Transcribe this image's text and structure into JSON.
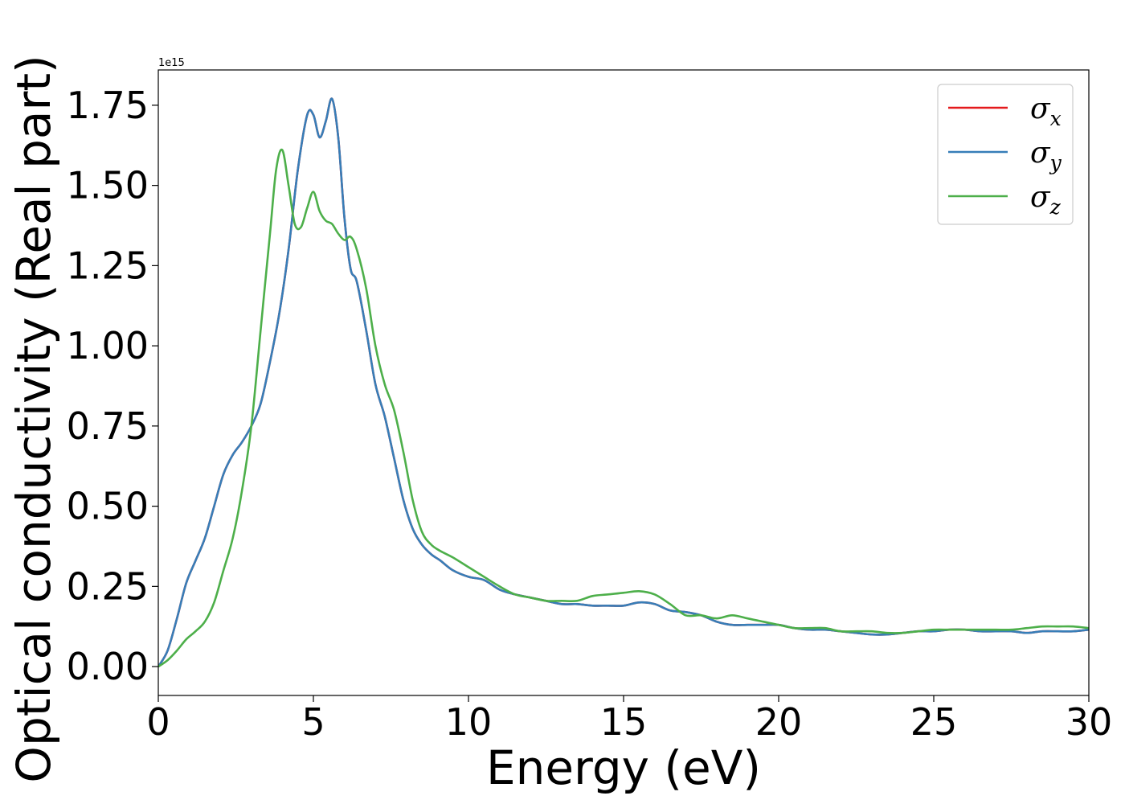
{
  "chart_data": {
    "type": "line",
    "xlabel": "Energy (eV)",
    "ylabel": "Optical conductivity (Real part)",
    "y_offset_label": "1e15",
    "xlim": [
      0,
      30
    ],
    "ylim": [
      -0.09,
      1.86
    ],
    "xticks": [
      0,
      5,
      10,
      15,
      20,
      25,
      30
    ],
    "xtick_labels": [
      "0",
      "5",
      "10",
      "15",
      "20",
      "25",
      "30"
    ],
    "yticks": [
      0,
      0.25,
      0.5,
      0.75,
      1.0,
      1.25,
      1.5,
      1.75
    ],
    "ytick_labels": [
      "0.00",
      "0.25",
      "0.50",
      "0.75",
      "1.00",
      "1.25",
      "1.50",
      "1.75"
    ],
    "grid": false,
    "legend_position": "top-right",
    "series": [
      {
        "name": "σx",
        "legend_base": "σ",
        "legend_sub": "x",
        "color": "#e41a1c",
        "x": [
          0,
          0.3,
          0.6,
          0.9,
          1.2,
          1.5,
          1.8,
          2.1,
          2.4,
          2.7,
          3.0,
          3.3,
          3.6,
          3.9,
          4.2,
          4.5,
          4.8,
          5.0,
          5.2,
          5.4,
          5.6,
          5.8,
          6.0,
          6.2,
          6.4,
          6.7,
          7.0,
          7.3,
          7.6,
          7.9,
          8.2,
          8.5,
          8.8,
          9.1,
          9.5,
          10.0,
          10.5,
          11.0,
          11.5,
          12.0,
          12.5,
          13.0,
          13.5,
          14.0,
          14.5,
          15.0,
          15.5,
          16.0,
          16.5,
          17.0,
          17.5,
          18.0,
          18.5,
          19.0,
          19.5,
          20.0,
          20.5,
          21.0,
          21.5,
          22.0,
          22.5,
          23.0,
          23.5,
          24.0,
          24.5,
          25.0,
          25.5,
          26.0,
          26.5,
          27.0,
          27.5,
          28.0,
          28.5,
          29.0,
          29.5,
          30.0
        ],
        "values": [
          0.0,
          0.05,
          0.15,
          0.26,
          0.33,
          0.4,
          0.5,
          0.6,
          0.66,
          0.7,
          0.75,
          0.82,
          0.95,
          1.1,
          1.3,
          1.55,
          1.72,
          1.72,
          1.65,
          1.7,
          1.77,
          1.65,
          1.4,
          1.24,
          1.2,
          1.05,
          0.88,
          0.78,
          0.65,
          0.52,
          0.43,
          0.38,
          0.35,
          0.33,
          0.3,
          0.28,
          0.27,
          0.24,
          0.225,
          0.215,
          0.205,
          0.195,
          0.195,
          0.19,
          0.19,
          0.19,
          0.2,
          0.195,
          0.175,
          0.17,
          0.16,
          0.14,
          0.13,
          0.13,
          0.13,
          0.13,
          0.12,
          0.115,
          0.115,
          0.11,
          0.105,
          0.1,
          0.1,
          0.105,
          0.11,
          0.11,
          0.115,
          0.115,
          0.11,
          0.11,
          0.11,
          0.105,
          0.11,
          0.11,
          0.11,
          0.115
        ]
      },
      {
        "name": "σy",
        "legend_base": "σ",
        "legend_sub": "y",
        "color": "#377eb8",
        "x": [
          0,
          0.3,
          0.6,
          0.9,
          1.2,
          1.5,
          1.8,
          2.1,
          2.4,
          2.7,
          3.0,
          3.3,
          3.6,
          3.9,
          4.2,
          4.5,
          4.8,
          5.0,
          5.2,
          5.4,
          5.6,
          5.8,
          6.0,
          6.2,
          6.4,
          6.7,
          7.0,
          7.3,
          7.6,
          7.9,
          8.2,
          8.5,
          8.8,
          9.1,
          9.5,
          10.0,
          10.5,
          11.0,
          11.5,
          12.0,
          12.5,
          13.0,
          13.5,
          14.0,
          14.5,
          15.0,
          15.5,
          16.0,
          16.5,
          17.0,
          17.5,
          18.0,
          18.5,
          19.0,
          19.5,
          20.0,
          20.5,
          21.0,
          21.5,
          22.0,
          22.5,
          23.0,
          23.5,
          24.0,
          24.5,
          25.0,
          25.5,
          26.0,
          26.5,
          27.0,
          27.5,
          28.0,
          28.5,
          29.0,
          29.5,
          30.0
        ],
        "values": [
          0.0,
          0.05,
          0.15,
          0.26,
          0.33,
          0.4,
          0.5,
          0.6,
          0.66,
          0.7,
          0.75,
          0.82,
          0.95,
          1.1,
          1.3,
          1.55,
          1.72,
          1.72,
          1.65,
          1.7,
          1.77,
          1.65,
          1.4,
          1.24,
          1.2,
          1.05,
          0.88,
          0.78,
          0.65,
          0.52,
          0.43,
          0.38,
          0.35,
          0.33,
          0.3,
          0.28,
          0.27,
          0.24,
          0.225,
          0.215,
          0.205,
          0.195,
          0.195,
          0.19,
          0.19,
          0.19,
          0.2,
          0.195,
          0.175,
          0.17,
          0.16,
          0.14,
          0.13,
          0.13,
          0.13,
          0.13,
          0.12,
          0.115,
          0.115,
          0.11,
          0.105,
          0.1,
          0.1,
          0.105,
          0.11,
          0.11,
          0.115,
          0.115,
          0.11,
          0.11,
          0.11,
          0.105,
          0.11,
          0.11,
          0.11,
          0.115
        ]
      },
      {
        "name": "σz",
        "legend_base": "σ",
        "legend_sub": "z",
        "color": "#4daf4a",
        "x": [
          0,
          0.3,
          0.6,
          0.9,
          1.2,
          1.5,
          1.8,
          2.1,
          2.4,
          2.7,
          3.0,
          3.3,
          3.6,
          3.8,
          4.0,
          4.2,
          4.4,
          4.6,
          4.8,
          5.0,
          5.2,
          5.4,
          5.6,
          5.8,
          6.0,
          6.2,
          6.4,
          6.7,
          7.0,
          7.3,
          7.6,
          7.9,
          8.2,
          8.5,
          8.8,
          9.1,
          9.5,
          10.0,
          10.5,
          11.0,
          11.5,
          12.0,
          12.5,
          13.0,
          13.5,
          14.0,
          14.5,
          15.0,
          15.5,
          16.0,
          16.5,
          17.0,
          17.5,
          18.0,
          18.5,
          19.0,
          19.5,
          20.0,
          20.5,
          21.0,
          21.5,
          22.0,
          22.5,
          23.0,
          23.5,
          24.0,
          24.5,
          25.0,
          25.5,
          26.0,
          26.5,
          27.0,
          27.5,
          28.0,
          28.5,
          29.0,
          29.5,
          30.0
        ],
        "values": [
          0.0,
          0.02,
          0.05,
          0.085,
          0.11,
          0.14,
          0.2,
          0.3,
          0.4,
          0.55,
          0.75,
          1.05,
          1.35,
          1.55,
          1.61,
          1.5,
          1.38,
          1.37,
          1.43,
          1.48,
          1.42,
          1.39,
          1.38,
          1.35,
          1.33,
          1.34,
          1.3,
          1.18,
          1.0,
          0.88,
          0.8,
          0.67,
          0.52,
          0.42,
          0.38,
          0.36,
          0.34,
          0.31,
          0.28,
          0.25,
          0.225,
          0.215,
          0.205,
          0.205,
          0.205,
          0.22,
          0.225,
          0.23,
          0.235,
          0.225,
          0.195,
          0.16,
          0.16,
          0.15,
          0.16,
          0.15,
          0.14,
          0.13,
          0.12,
          0.12,
          0.12,
          0.11,
          0.11,
          0.11,
          0.105,
          0.105,
          0.11,
          0.115,
          0.115,
          0.115,
          0.115,
          0.115,
          0.115,
          0.12,
          0.125,
          0.125,
          0.125,
          0.12
        ]
      }
    ]
  }
}
